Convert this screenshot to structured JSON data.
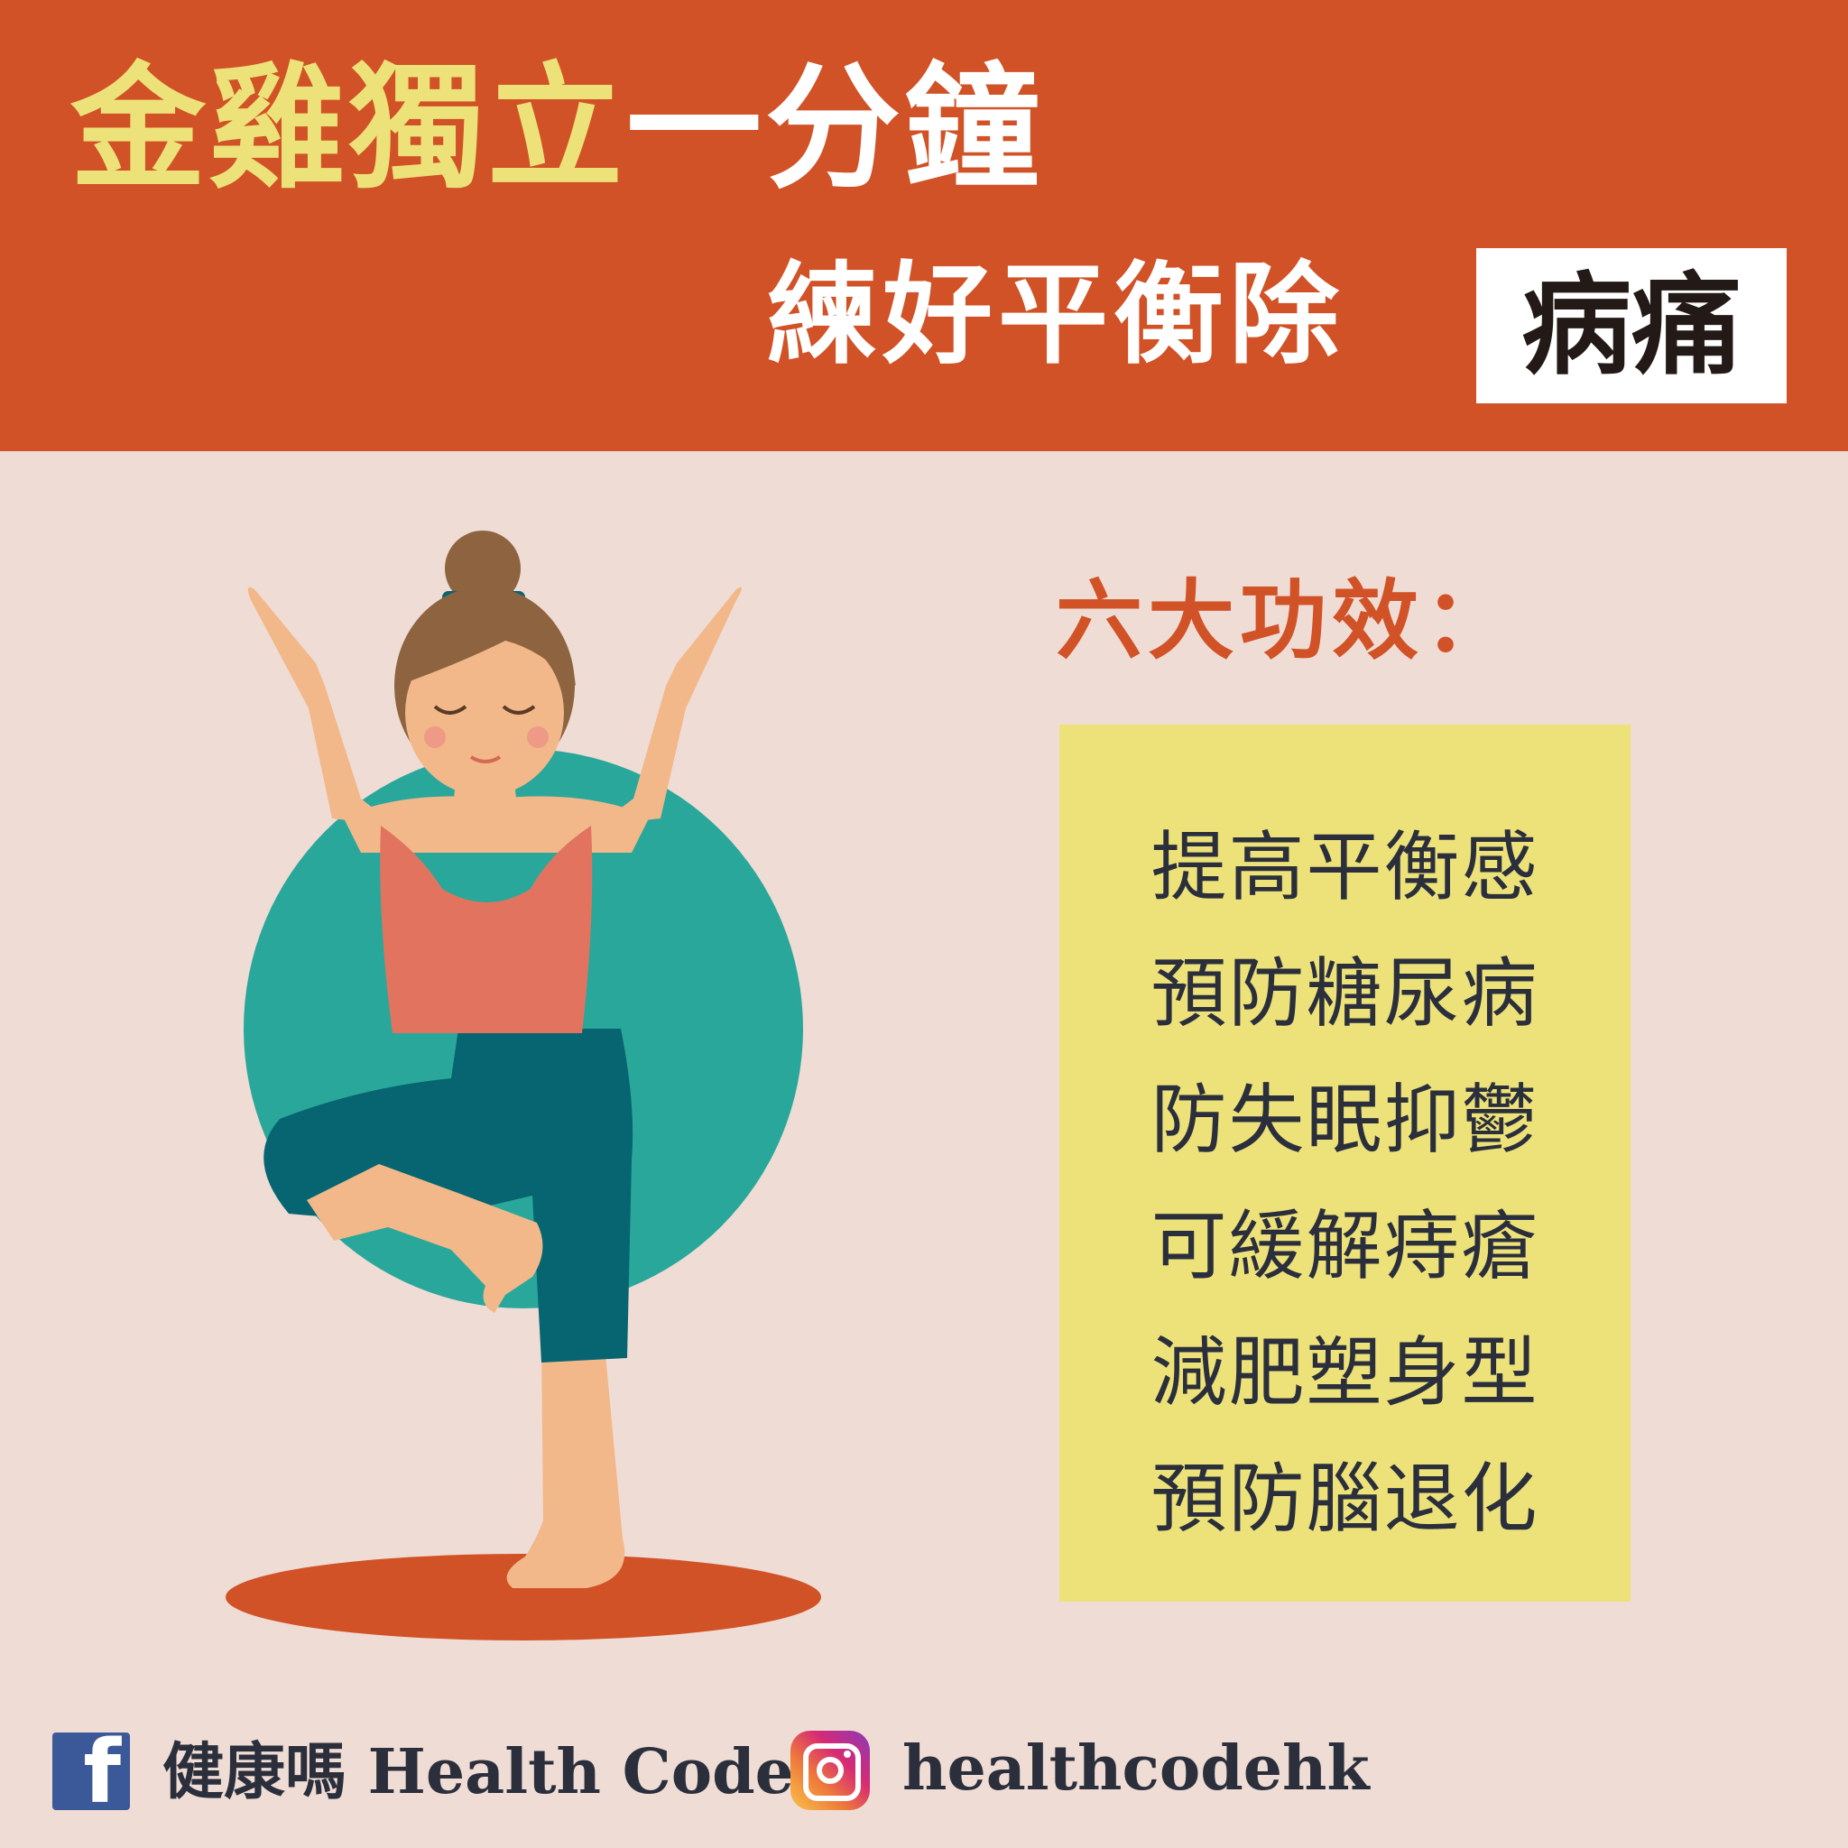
{
  "header": {
    "title_part1": "金雞獨立",
    "title_part2": "一分鐘",
    "subtitle": "練好平衡除",
    "subtitle_highlight": "病痛"
  },
  "benefits": {
    "heading": "六大功效：",
    "items": [
      "提高平衡感",
      "預防糖尿病",
      "防失眠抑鬱",
      "可緩解痔瘡",
      "減肥塑身型",
      "預防腦退化"
    ]
  },
  "footer": {
    "facebook_icon": "facebook-icon",
    "facebook_name": "健康嗎 Health Code",
    "instagram_icon": "instagram-icon",
    "instagram_handle": "healthcodehk"
  },
  "colors": {
    "header_bg": "#d15226",
    "page_bg": "#efdcd5",
    "title_yellow": "#ede279",
    "box_yellow": "#ede279",
    "circle_teal": "#2aa79b",
    "text_dark": "#2b2f3c"
  }
}
